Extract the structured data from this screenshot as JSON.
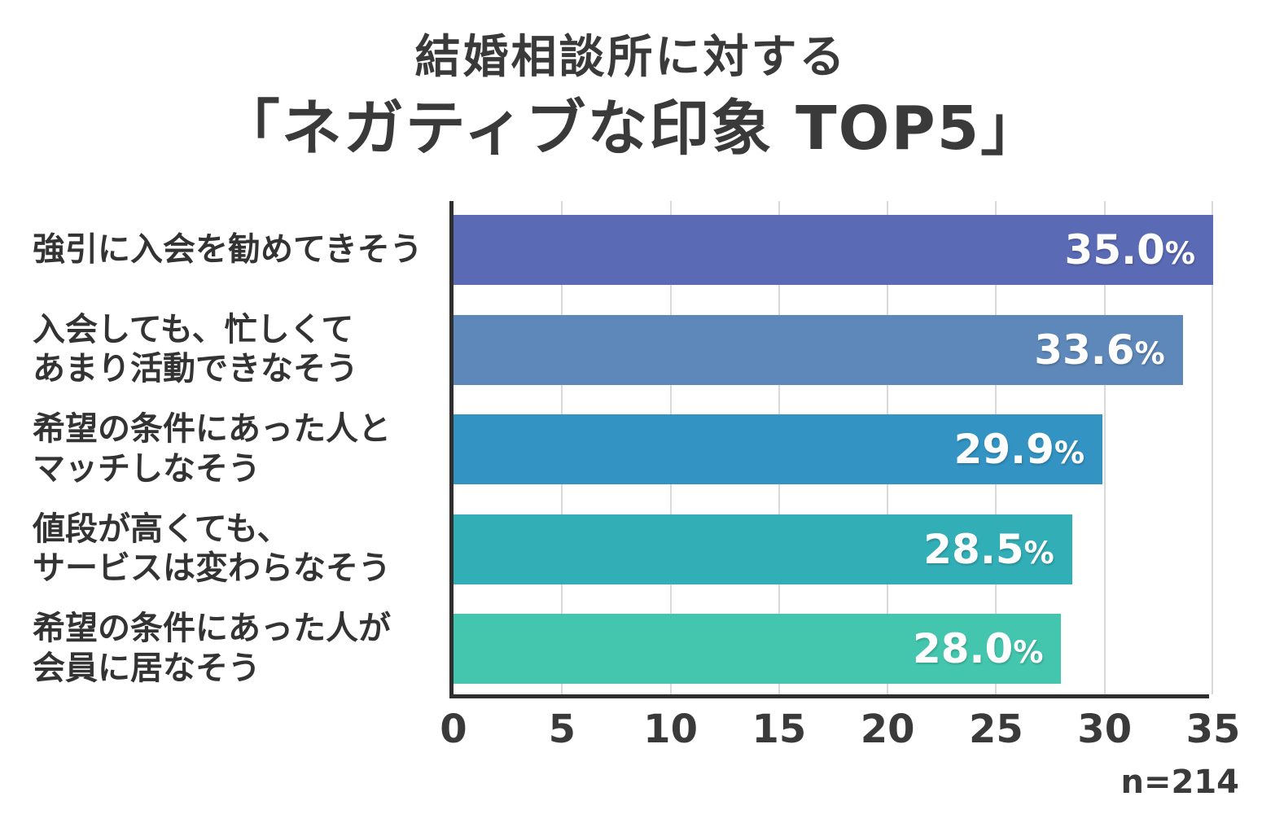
{
  "title": {
    "line1": "結婚相談所に対する",
    "line2": "「ネガティブな印象 TOP5」"
  },
  "footnote": "n=214",
  "chart_data": {
    "type": "bar",
    "orientation": "horizontal",
    "title": "結婚相談所に対する「ネガティブな印象 TOP5」",
    "categories": [
      [
        "強引に入会を勧めてきそう"
      ],
      [
        "入会しても、忙しくて",
        "あまり活動できなそう"
      ],
      [
        "希望の条件にあった人と",
        "マッチしなそう"
      ],
      [
        "値段が高くても、",
        "サービスは変わらなそう"
      ],
      [
        "希望の条件にあった人が",
        "会員に居なそう"
      ]
    ],
    "values": [
      35.0,
      33.6,
      29.9,
      28.5,
      28.0
    ],
    "value_labels": [
      "35.0%",
      "33.6%",
      "29.9%",
      "28.5%",
      "28.0%"
    ],
    "bar_colors": [
      "#5B6AB5",
      "#5E88BA",
      "#3393C3",
      "#32AEB7",
      "#44C6AE"
    ],
    "xlim": [
      0,
      35
    ],
    "x_ticks": [
      0,
      5,
      10,
      15,
      20,
      25,
      30,
      35
    ],
    "grid": true,
    "legend": false,
    "sample_size": "n=214",
    "unit": "%"
  },
  "style_colors": {
    "axis_line": "#2f2f2f",
    "gridline": "#d9d9d9",
    "text": "#3a3a3a",
    "value_text": "#ffffff",
    "background": "#ffffff"
  }
}
